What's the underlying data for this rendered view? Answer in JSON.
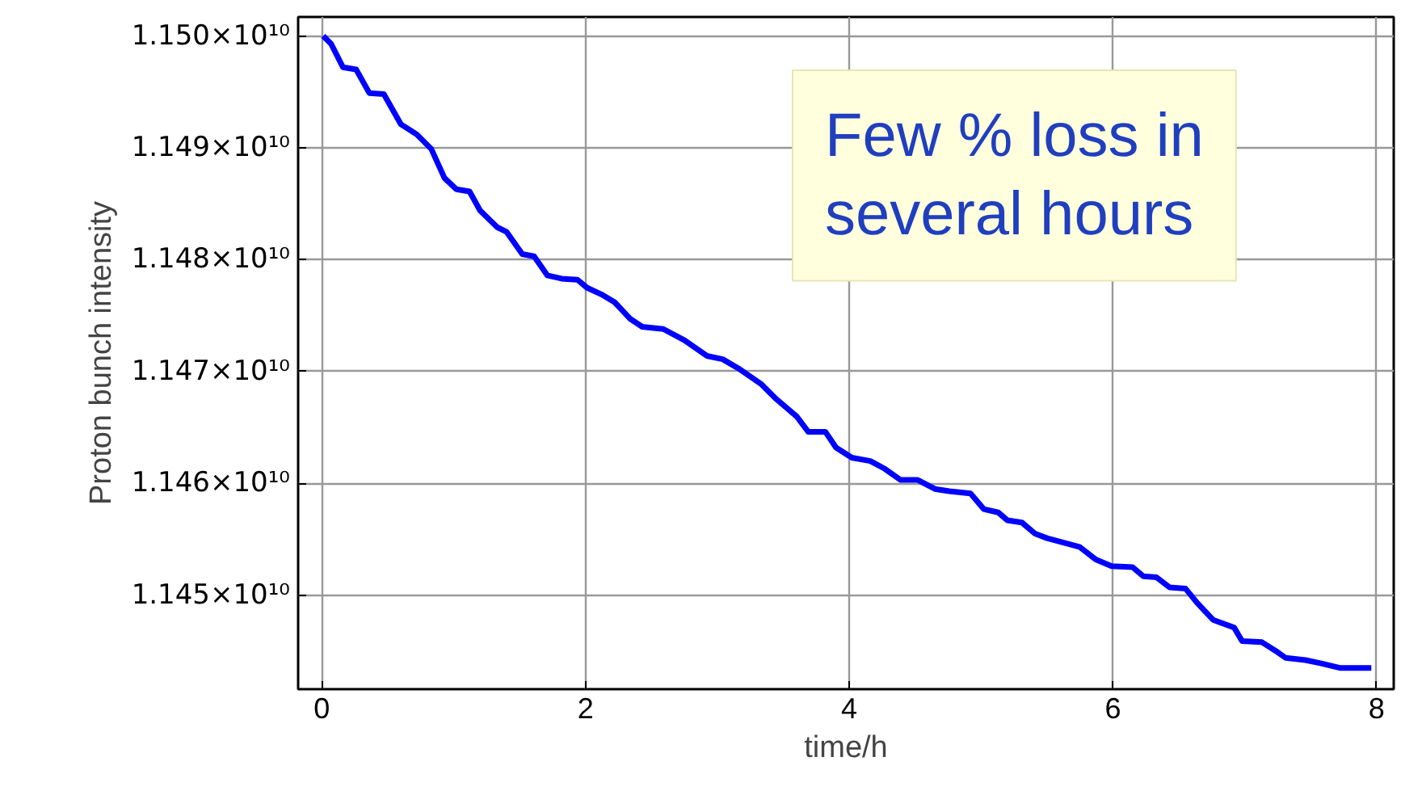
{
  "chart_data": {
    "type": "line",
    "xlabel": "time/h",
    "ylabel": "Proton bunch intensity",
    "annotations": [
      "Few % loss in several hours"
    ],
    "xlim": [
      -0.18,
      8.13
    ],
    "xticks": [
      0,
      2,
      4,
      6,
      8
    ],
    "ylim": [
      11441600000.0,
      11501700000.0
    ],
    "yticks": [
      {
        "value": 11450000000.0,
        "label": "1.145×10¹⁰"
      },
      {
        "value": 11460000000.0,
        "label": "1.146×10¹⁰"
      },
      {
        "value": 11470000000.0,
        "label": "1.147×10¹⁰"
      },
      {
        "value": 11480000000.0,
        "label": "1.148×10¹⁰"
      },
      {
        "value": 11490000000.0,
        "label": "1.149×10¹⁰"
      },
      {
        "value": 11500000000.0,
        "label": "1.150×10¹⁰"
      }
    ],
    "grid": true,
    "marker": "none",
    "line_style": "solid",
    "x": [
      0.01,
      0.07,
      0.16,
      0.26,
      0.36,
      0.47,
      0.6,
      0.72,
      0.83,
      0.93,
      1.02,
      1.12,
      1.2,
      1.33,
      1.4,
      1.52,
      1.61,
      1.71,
      1.82,
      1.94,
      2.01,
      2.12,
      2.22,
      2.34,
      2.43,
      2.59,
      2.75,
      2.92,
      3.04,
      3.17,
      3.33,
      3.45,
      3.6,
      3.69,
      3.82,
      3.9,
      4.02,
      4.16,
      4.27,
      4.39,
      4.52,
      4.65,
      4.76,
      4.92,
      5.02,
      5.13,
      5.2,
      5.31,
      5.41,
      5.5,
      5.66,
      5.75,
      5.87,
      5.99,
      6.15,
      6.23,
      6.33,
      6.43,
      6.55,
      6.64,
      6.76,
      6.92,
      6.98,
      7.13,
      7.25,
      7.31,
      7.46,
      7.58,
      7.72,
      7.96
    ],
    "series": [
      {
        "color": "#0000ff",
        "values": [
          11500000000.0,
          11499300000.0,
          11497200000.0,
          11497000000.0,
          11494900000.0,
          11494800000.0,
          11492100000.0,
          11491200000.0,
          11489900000.0,
          11487300000.0,
          11486300000.0,
          11486100000.0,
          11484400000.0,
          11482900000.0,
          11482500000.0,
          11480500000.0,
          11480300000.0,
          11478600000.0,
          11478300000.0,
          11478200000.0,
          11477500000.0,
          11476900000.0,
          11476200000.0,
          11474700000.0,
          11474000000.0,
          11473800000.0,
          11472800000.0,
          11471400000.0,
          11471100000.0,
          11470200000.0,
          11468900000.0,
          11467500000.0,
          11466000000.0,
          11464600000.0,
          11464600000.0,
          11463200000.0,
          11462300000.0,
          11462000000.0,
          11461300000.0,
          11460300000.0,
          11460300000.0,
          11459500000.0,
          11459300000.0,
          11459100000.0,
          11457700000.0,
          11457400000.0,
          11456700000.0,
          11456500000.0,
          11455500000.0,
          11455100000.0,
          11454600000.0,
          11454300000.0,
          11453200000.0,
          11452600000.0,
          11452500000.0,
          11451700000.0,
          11451600000.0,
          11450700000.0,
          11450600000.0,
          11449300000.0,
          11447800000.0,
          11447100000.0,
          11445900000.0,
          11445800000.0,
          11444900000.0,
          11444400000.0,
          11444200000.0,
          11443900000.0,
          11443500000.0,
          11443500000.0
        ]
      }
    ]
  }
}
